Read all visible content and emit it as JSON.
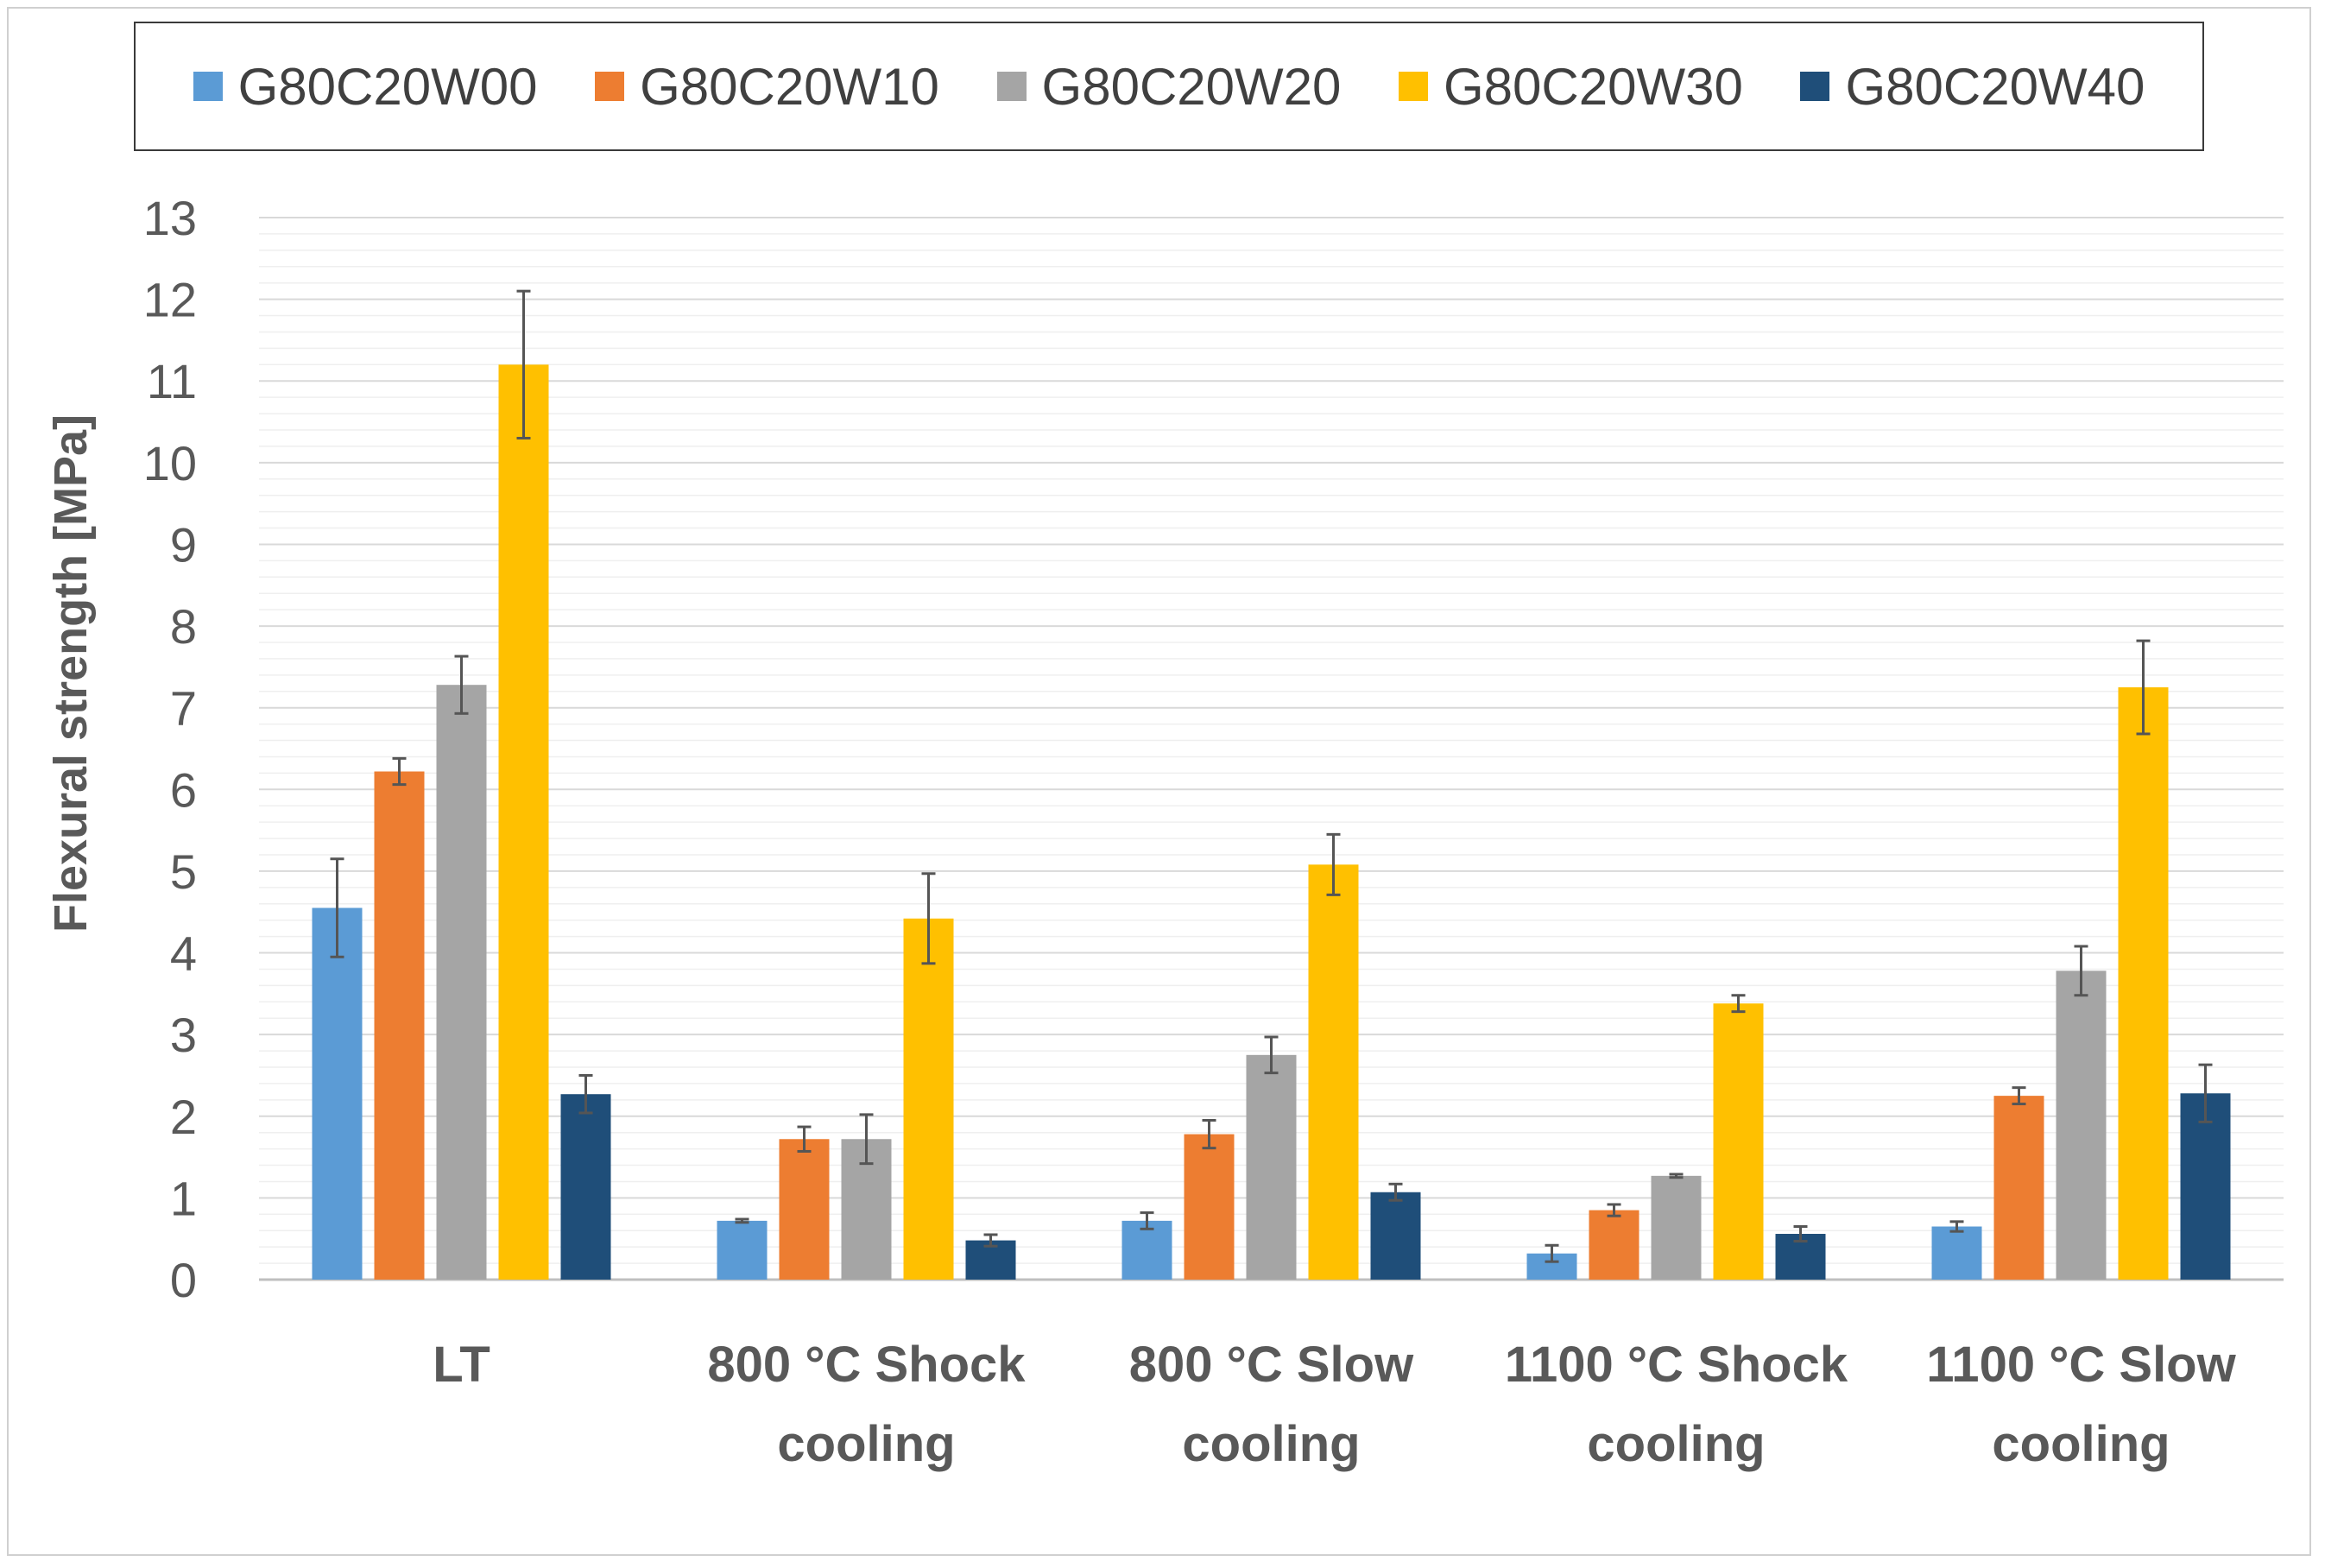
{
  "chart_data": {
    "type": "bar",
    "title": "",
    "xlabel": "",
    "ylabel": "Flexural strength [MPa]",
    "ylim": [
      0,
      13
    ],
    "y_ticks": [
      0,
      1,
      2,
      3,
      4,
      5,
      6,
      7,
      8,
      9,
      10,
      11,
      12,
      13
    ],
    "grid": true,
    "legend_position": "top",
    "categories": [
      [
        "LT"
      ],
      [
        "800 °C Shock",
        "cooling"
      ],
      [
        "800 °C Slow",
        "cooling"
      ],
      [
        "1100 °C Shock",
        "cooling"
      ],
      [
        "1100 °C Slow",
        "cooling"
      ]
    ],
    "series": [
      {
        "name": "G80C20W00",
        "color": "#5b9bd5",
        "values": [
          4.55,
          0.72,
          0.72,
          0.32,
          0.65
        ],
        "errors": [
          0.6,
          0.02,
          0.1,
          0.1,
          0.06
        ]
      },
      {
        "name": "G80C20W10",
        "color": "#ed7d31",
        "values": [
          6.22,
          1.72,
          1.78,
          0.85,
          2.25
        ],
        "errors": [
          0.16,
          0.15,
          0.17,
          0.07,
          0.1
        ]
      },
      {
        "name": "G80C20W20",
        "color": "#a5a5a5",
        "values": [
          7.28,
          1.72,
          2.75,
          1.27,
          3.78
        ],
        "errors": [
          0.35,
          0.3,
          0.22,
          0.02,
          0.3
        ]
      },
      {
        "name": "G80C20W30",
        "color": "#ffc000",
        "values": [
          11.2,
          4.42,
          5.08,
          3.38,
          7.25
        ],
        "errors": [
          0.9,
          0.55,
          0.37,
          0.1,
          0.57
        ]
      },
      {
        "name": "G80C20W40",
        "color": "#1f4e79",
        "values": [
          2.27,
          0.48,
          1.07,
          0.56,
          2.28
        ],
        "errors": [
          0.23,
          0.07,
          0.1,
          0.09,
          0.35
        ]
      }
    ]
  }
}
